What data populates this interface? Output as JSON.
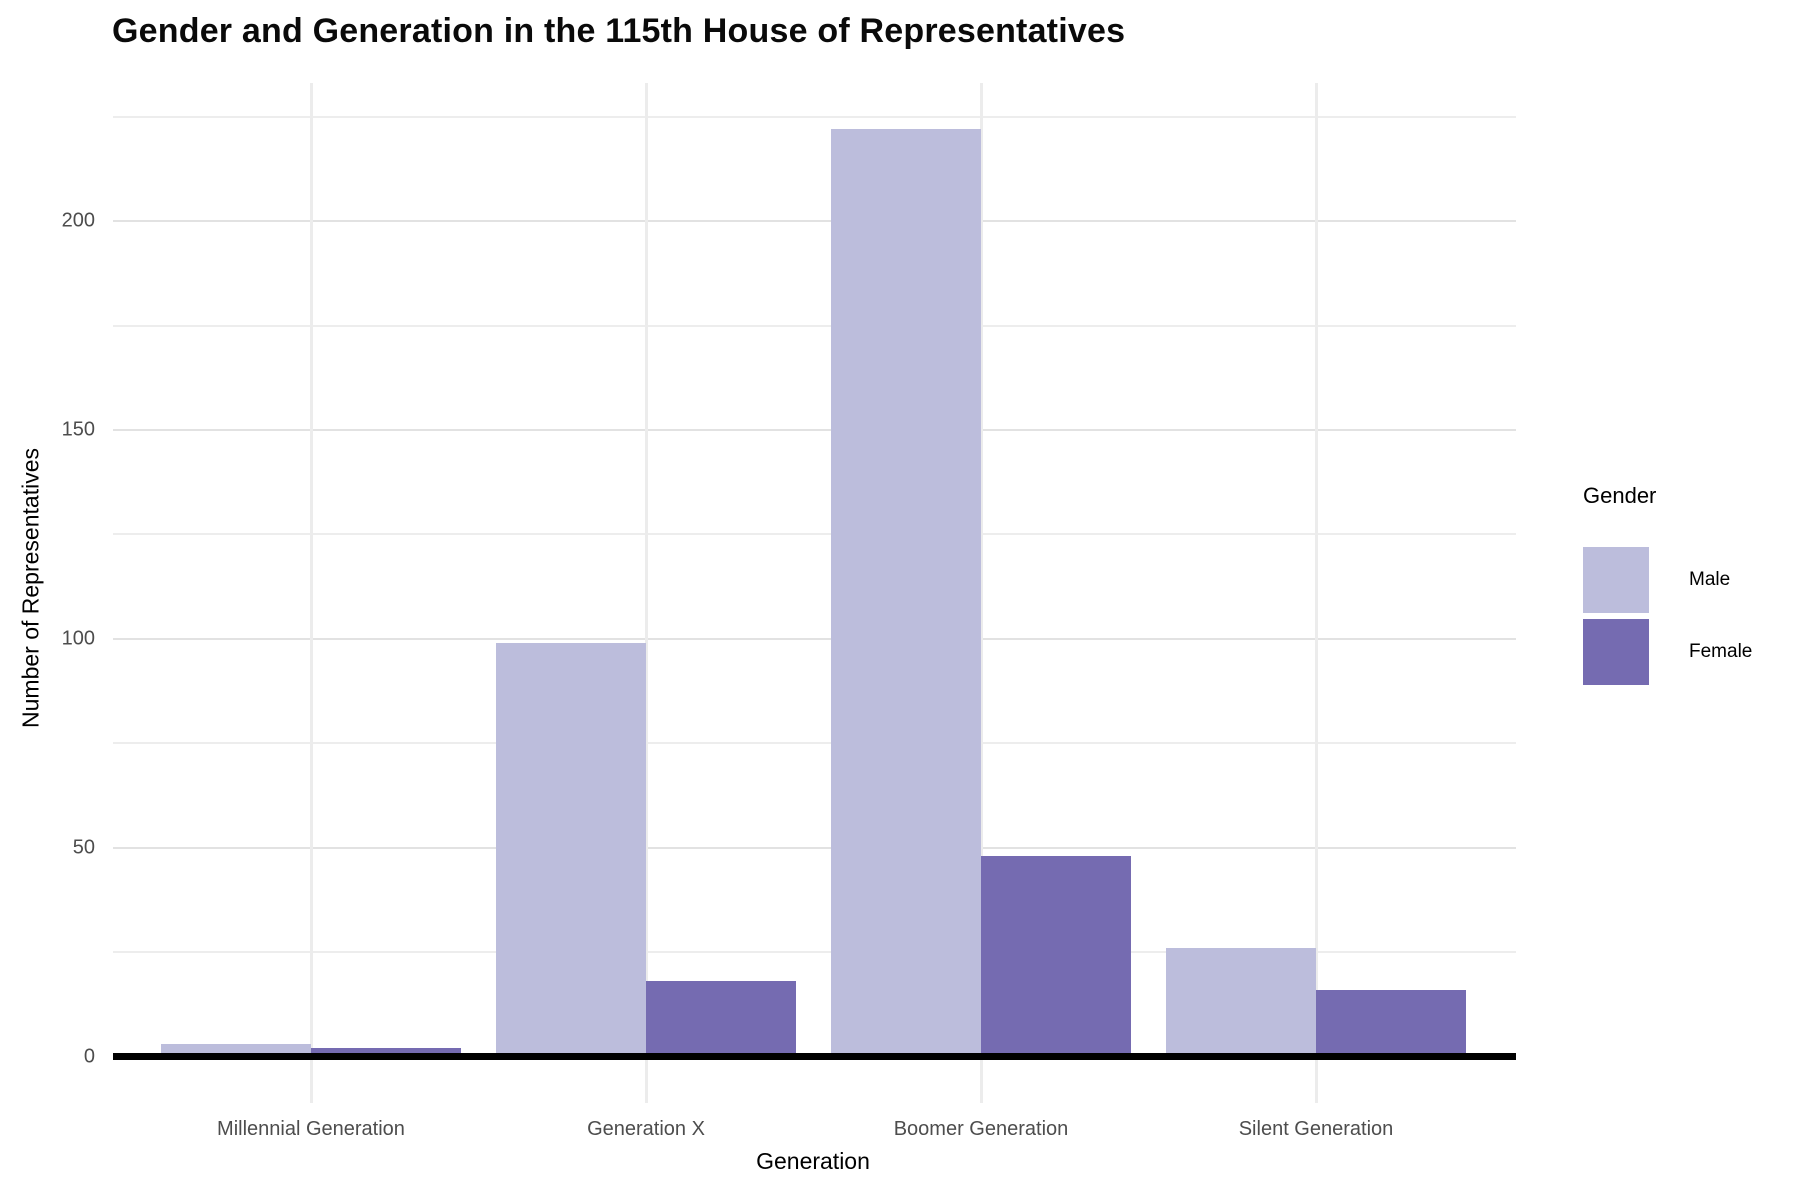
{
  "chart_data": {
    "type": "bar",
    "title": "Gender and Generation in the 115th House of Representatives",
    "xlabel": "Generation",
    "ylabel": "Number of Representatives",
    "categories": [
      "Millennial Generation",
      "Generation X",
      "Boomer Generation",
      "Silent Generation"
    ],
    "series": [
      {
        "name": "Male",
        "color": "#bcbddc",
        "values": [
          3,
          99,
          222,
          26
        ]
      },
      {
        "name": "Female",
        "color": "#756bb1",
        "values": [
          2,
          18,
          48,
          16
        ]
      }
    ],
    "y_major_ticks": [
      0,
      50,
      100,
      150,
      200
    ],
    "y_minor_ticks": [
      25,
      75,
      125,
      175,
      225
    ],
    "ylim": [
      0,
      233
    ],
    "grid": "major and minor, light gray, white background",
    "zero_line_color": "#000000",
    "legend": {
      "title": "Gender",
      "position": "right"
    }
  }
}
